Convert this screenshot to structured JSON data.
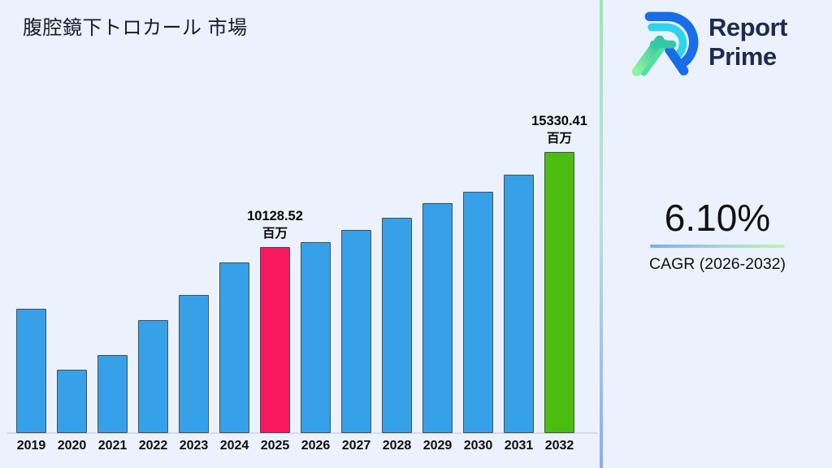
{
  "page": {
    "title": "腹腔鏡下トロカール 市場"
  },
  "logo": {
    "line1": "Report",
    "line2": "Prime"
  },
  "cagr": {
    "value": "6.10%",
    "label": "CAGR (2026-2032)"
  },
  "chart_data": {
    "type": "bar",
    "title": "腹腔鏡下トロカール 市場",
    "unit": "百万",
    "xlabel": "",
    "ylabel": "",
    "ylim": [
      0,
      16000
    ],
    "grid": false,
    "legend": null,
    "categories": [
      "2019",
      "2020",
      "2021",
      "2022",
      "2023",
      "2024",
      "2025",
      "2026",
      "2027",
      "2028",
      "2029",
      "2030",
      "2031",
      "2032"
    ],
    "values": [
      6790,
      3470,
      4260,
      6130,
      7500,
      9300,
      10128.52,
      10410,
      11070,
      11730,
      12500,
      13160,
      14060,
      15330.41
    ],
    "values_note": "only 2025 and 2032 are labeled on the chart; other values estimated from bar heights",
    "bar_color": "#36a1e9",
    "bar_edge_color": "#474d55",
    "highlight_colors": {
      "2025": "#f8195f",
      "2032": "#4cbd10"
    },
    "annotations": [
      {
        "category": "2025",
        "lines": [
          "10128.52",
          "百万"
        ]
      },
      {
        "category": "2032",
        "lines": [
          "15330.41",
          "百万"
        ]
      }
    ]
  },
  "colors": {
    "background": "#ebf2fd",
    "divider_top": "#96e8b0",
    "divider_bottom": "#8aabf8",
    "logo_blue": "#1a6de8",
    "logo_cyan": "#2fd4ec",
    "logo_green": "#8df59f",
    "logo_teal": "#35c9a8"
  }
}
